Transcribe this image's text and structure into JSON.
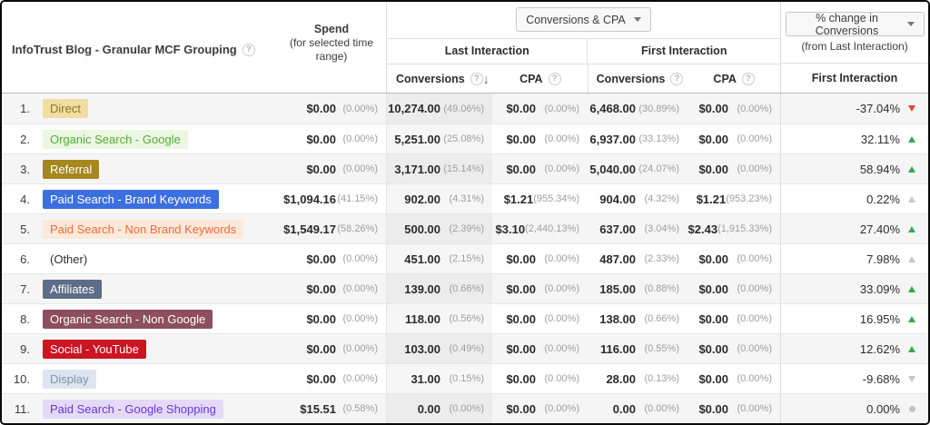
{
  "header": {
    "dimension_label": "InfoTrust Blog - Granular MCF Grouping",
    "spend_title": "Spend",
    "spend_subtitle": "(for selected time range)",
    "metric_dropdown_label": "Conversions & CPA",
    "group_last": "Last Interaction",
    "group_first": "First Interaction",
    "col_conversions_last": "Conversions",
    "col_cpa_last": "CPA",
    "col_conversions_first": "Conversions",
    "col_cpa_first": "CPA",
    "sort_icon": "↓",
    "help_icon": "?",
    "change_dropdown_label": "% change in Conversions",
    "change_subtitle": "(from Last Interaction)",
    "change_column_header": "First Interaction"
  },
  "colors": {
    "positive": "#33a852",
    "negative": "#e9443a",
    "neutral": "#c7c7c7"
  },
  "rows": [
    {
      "num": "1.",
      "channel": "Direct",
      "chip": {
        "bg": "#f0dda2",
        "fg": "#8f7820"
      },
      "spend": "$0.00",
      "spend_pct": "(0.00%)",
      "li_conv": "10,274.00",
      "li_conv_pct": "(49.06%)",
      "li_cpa": "$0.00",
      "li_cpa_pct": "(0.00%)",
      "fi_conv": "6,468.00",
      "fi_conv_pct": "(30.89%)",
      "fi_cpa": "$0.00",
      "fi_cpa_pct": "(0.00%)",
      "change": "-37.04%",
      "arrow": "down",
      "tone": "negative"
    },
    {
      "num": "2.",
      "channel": "Organic Search - Google",
      "chip": {
        "bg": "#ebf7e2",
        "fg": "#55a83d"
      },
      "spend": "$0.00",
      "spend_pct": "(0.00%)",
      "li_conv": "5,251.00",
      "li_conv_pct": "(25.08%)",
      "li_cpa": "$0.00",
      "li_cpa_pct": "(0.00%)",
      "fi_conv": "6,937.00",
      "fi_conv_pct": "(33.13%)",
      "fi_cpa": "$0.00",
      "fi_cpa_pct": "(0.00%)",
      "change": "32.11%",
      "arrow": "up",
      "tone": "positive"
    },
    {
      "num": "3.",
      "channel": "Referral",
      "chip": {
        "bg": "#a5861f",
        "fg": "#ffffff"
      },
      "spend": "$0.00",
      "spend_pct": "(0.00%)",
      "li_conv": "3,171.00",
      "li_conv_pct": "(15.14%)",
      "li_cpa": "$0.00",
      "li_cpa_pct": "(0.00%)",
      "fi_conv": "5,040.00",
      "fi_conv_pct": "(24.07%)",
      "fi_cpa": "$0.00",
      "fi_cpa_pct": "(0.00%)",
      "change": "58.94%",
      "arrow": "up",
      "tone": "positive"
    },
    {
      "num": "4.",
      "channel": "Paid Search - Brand Keywords",
      "chip": {
        "bg": "#3c6fe0",
        "fg": "#ffffff"
      },
      "spend": "$1,094.16",
      "spend_pct": "(41.15%)",
      "li_conv": "902.00",
      "li_conv_pct": "(4.31%)",
      "li_cpa": "$1.21",
      "li_cpa_pct": "(955.34%)",
      "fi_conv": "904.00",
      "fi_conv_pct": "(4.32%)",
      "fi_cpa": "$1.21",
      "fi_cpa_pct": "(953.23%)",
      "change": "0.22%",
      "arrow": "up",
      "tone": "neutral"
    },
    {
      "num": "5.",
      "channel": "Paid Search - Non Brand Keywords",
      "chip": {
        "bg": "#fde9da",
        "fg": "#ef6a3a"
      },
      "spend": "$1,549.17",
      "spend_pct": "(58.26%)",
      "li_conv": "500.00",
      "li_conv_pct": "(2.39%)",
      "li_cpa": "$3.10",
      "li_cpa_pct": "(2,440.13%)",
      "fi_conv": "637.00",
      "fi_conv_pct": "(3.04%)",
      "fi_cpa": "$2.43",
      "fi_cpa_pct": "(1,915.33%)",
      "change": "27.40%",
      "arrow": "up",
      "tone": "positive"
    },
    {
      "num": "6.",
      "channel": "(Other)",
      "chip": null,
      "spend": "$0.00",
      "spend_pct": "(0.00%)",
      "li_conv": "451.00",
      "li_conv_pct": "(2.15%)",
      "li_cpa": "$0.00",
      "li_cpa_pct": "(0.00%)",
      "fi_conv": "487.00",
      "fi_conv_pct": "(2.33%)",
      "fi_cpa": "$0.00",
      "fi_cpa_pct": "(0.00%)",
      "change": "7.98%",
      "arrow": "up",
      "tone": "neutral"
    },
    {
      "num": "7.",
      "channel": "Affiliates",
      "chip": {
        "bg": "#5d6c87",
        "fg": "#ffffff"
      },
      "spend": "$0.00",
      "spend_pct": "(0.00%)",
      "li_conv": "139.00",
      "li_conv_pct": "(0.66%)",
      "li_cpa": "$0.00",
      "li_cpa_pct": "(0.00%)",
      "fi_conv": "185.00",
      "fi_conv_pct": "(0.88%)",
      "fi_cpa": "$0.00",
      "fi_cpa_pct": "(0.00%)",
      "change": "33.09%",
      "arrow": "up",
      "tone": "positive"
    },
    {
      "num": "8.",
      "channel": "Organic Search - Non Google",
      "chip": {
        "bg": "#8c4e60",
        "fg": "#ffffff"
      },
      "spend": "$0.00",
      "spend_pct": "(0.00%)",
      "li_conv": "118.00",
      "li_conv_pct": "(0.56%)",
      "li_cpa": "$0.00",
      "li_cpa_pct": "(0.00%)",
      "fi_conv": "138.00",
      "fi_conv_pct": "(0.66%)",
      "fi_cpa": "$0.00",
      "fi_cpa_pct": "(0.00%)",
      "change": "16.95%",
      "arrow": "up",
      "tone": "positive"
    },
    {
      "num": "9.",
      "channel": "Social - YouTube",
      "chip": {
        "bg": "#cd1422",
        "fg": "#ffffff"
      },
      "spend": "$0.00",
      "spend_pct": "(0.00%)",
      "li_conv": "103.00",
      "li_conv_pct": "(0.49%)",
      "li_cpa": "$0.00",
      "li_cpa_pct": "(0.00%)",
      "fi_conv": "116.00",
      "fi_conv_pct": "(0.55%)",
      "fi_cpa": "$0.00",
      "fi_cpa_pct": "(0.00%)",
      "change": "12.62%",
      "arrow": "up",
      "tone": "positive"
    },
    {
      "num": "10.",
      "channel": "Display",
      "chip": {
        "bg": "#dce5f0",
        "fg": "#8095ae"
      },
      "spend": "$0.00",
      "spend_pct": "(0.00%)",
      "li_conv": "31.00",
      "li_conv_pct": "(0.15%)",
      "li_cpa": "$0.00",
      "li_cpa_pct": "(0.00%)",
      "fi_conv": "28.00",
      "fi_conv_pct": "(0.13%)",
      "fi_cpa": "$0.00",
      "fi_cpa_pct": "(0.00%)",
      "change": "-9.68%",
      "arrow": "down",
      "tone": "neutral"
    },
    {
      "num": "11.",
      "channel": "Paid Search - Google Shopping",
      "chip": {
        "bg": "#e4daf8",
        "fg": "#6936d9"
      },
      "spend": "$15.51",
      "spend_pct": "(0.58%)",
      "li_conv": "0.00",
      "li_conv_pct": "(0.00%)",
      "li_cpa": "$0.00",
      "li_cpa_pct": "(0.00%)",
      "fi_conv": "0.00",
      "fi_conv_pct": "(0.00%)",
      "fi_cpa": "$0.00",
      "fi_cpa_pct": "(0.00%)",
      "change": "0.00%",
      "arrow": "dot",
      "tone": "neutral"
    }
  ]
}
